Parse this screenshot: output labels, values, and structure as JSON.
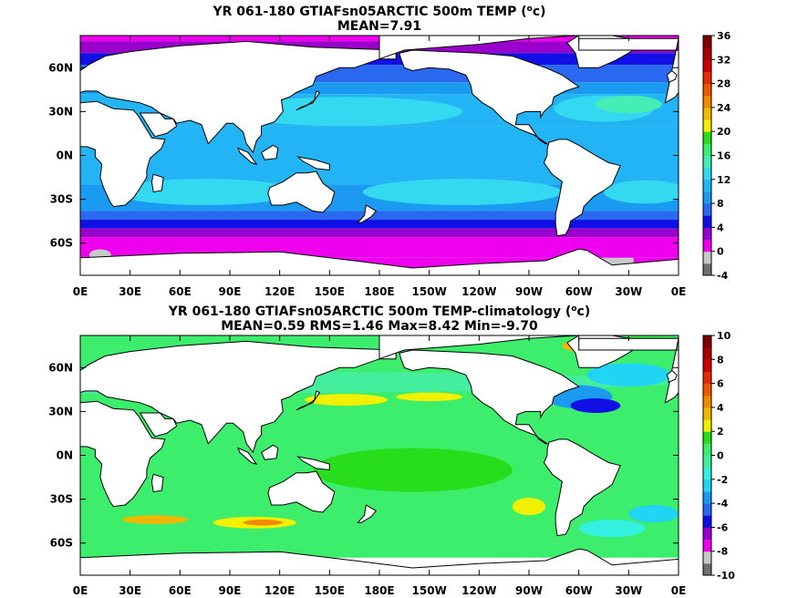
{
  "chart_data": [
    {
      "type": "heatmap",
      "title_prefix": "YR 061-180 GTIAFsn05ARCTIC 500m TEMP (",
      "title_unit": "o",
      "title_suffix": "c)",
      "subtitle": "MEAN=7.91",
      "xticks": [
        "0E",
        "30E",
        "60E",
        "90E",
        "120E",
        "150E",
        "180E",
        "150W",
        "120W",
        "90W",
        "60W",
        "30W",
        "0E"
      ],
      "yticks": [
        "60N",
        "30N",
        "0N",
        "30S",
        "60S"
      ],
      "colorbar": {
        "values": [
          -4,
          0,
          4,
          8,
          12,
          16,
          20,
          24,
          28,
          32,
          36
        ],
        "labels": [
          "-4",
          "0",
          "4",
          "8",
          "12",
          "16",
          "20",
          "24",
          "28",
          "32",
          "36"
        ],
        "colors": [
          "#707070",
          "#c8c8c8",
          "#ee00ee",
          "#9a00cc",
          "#1010e6",
          "#2a68f0",
          "#1a9af0",
          "#22b4f4",
          "#34d8f0",
          "#44eeb4",
          "#3cee6c",
          "#28dd1c",
          "#f0f000",
          "#f0b800",
          "#f08800",
          "#ee5800",
          "#e82a00",
          "#cc0000",
          "#aa0000",
          "#800000"
        ]
      },
      "mean": 7.91
    },
    {
      "type": "heatmap",
      "title_prefix": "YR 061-180 GTIAFsn05ARCTIC 500m TEMP-climatology (",
      "title_unit": "o",
      "title_suffix": "c)",
      "subtitle": "MEAN=0.59   RMS=1.46   Max=8.42   Min=-9.70",
      "xticks": [
        "0E",
        "30E",
        "60E",
        "90E",
        "120E",
        "150E",
        "180E",
        "150W",
        "120W",
        "90W",
        "60W",
        "30W",
        "0E"
      ],
      "yticks": [
        "60N",
        "30N",
        "0N",
        "30S",
        "60S"
      ],
      "colorbar": {
        "values": [
          -10,
          -8,
          -6,
          -4,
          -2,
          0,
          2,
          4,
          6,
          8,
          10
        ],
        "labels": [
          "-10",
          "-8",
          "-6",
          "-4",
          "-2",
          "0",
          "2",
          "4",
          "6",
          "8",
          "10"
        ],
        "colors": [
          "#707070",
          "#c8c8c8",
          "#ee00ee",
          "#9a00cc",
          "#1010e6",
          "#2a68f0",
          "#1a9af0",
          "#22d4f4",
          "#34f0e0",
          "#44ee9c",
          "#3cee6c",
          "#28dd1c",
          "#f0f000",
          "#f0b800",
          "#f08800",
          "#ee5800",
          "#e82a00",
          "#cc0000",
          "#aa0000",
          "#800000"
        ]
      },
      "mean": 0.59,
      "rms": 1.46,
      "max": 8.42,
      "min": -9.7
    }
  ]
}
